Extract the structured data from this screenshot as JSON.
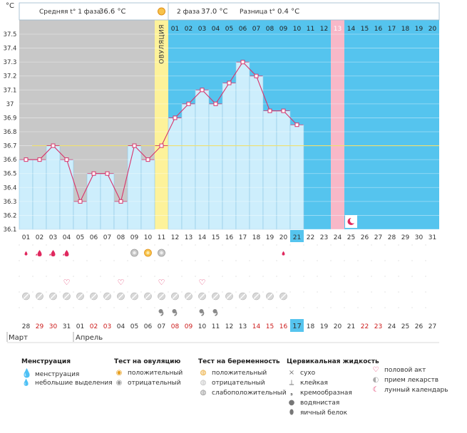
{
  "header": {
    "unit": "°C",
    "phase1_label": "Средняя t° 1 фаза",
    "phase1_value": "36.6 °C",
    "phase2_label": "2 фаза",
    "phase2_value": "37.0 °C",
    "diff_label": "Разница t°",
    "diff_value": "0.4 °C"
  },
  "colors": {
    "phase1_bg": "#c8c8c8",
    "phase2_bg": "#55c4ee",
    "bar_fill": "#cdeefc",
    "line": "#d8336b",
    "ovulation": "#fdf29a",
    "pink": "#f8b8c8",
    "coverline": "#f0e070",
    "highlight": "#55c4ee",
    "red_text": "#cc1a1a"
  },
  "chart_data": {
    "type": "line",
    "title": "",
    "ylabel": "°C",
    "ylim": [
      36.1,
      37.5
    ],
    "yticks": [
      "37.5",
      "37.4",
      "37.3",
      "37.2",
      "37.1",
      "37",
      "36.9",
      "36.8",
      "36.7",
      "36.6",
      "36.5",
      "36.4",
      "36.3",
      "36.2",
      "36.1"
    ],
    "cover_line": 36.7,
    "ovulation_day_index": 10,
    "ovulation_label": "ОВУЛЯЦИЯ",
    "pink_day_index": 23,
    "moon_day_index": 24,
    "highlight_day_index": 20,
    "cycle_days": [
      "01",
      "02",
      "03",
      "04",
      "05",
      "06",
      "07",
      "08",
      "09",
      "10",
      "11",
      "12",
      "13",
      "14",
      "15",
      "16",
      "17",
      "18",
      "19",
      "20",
      "21",
      "22",
      "23",
      "24",
      "25",
      "26",
      "27",
      "28",
      "29",
      "30",
      "31"
    ],
    "top_days": [
      "01",
      "02",
      "03",
      "04",
      "05",
      "06",
      "07",
      "08",
      "09",
      "10",
      "11",
      "12",
      "13",
      "14",
      "15",
      "16",
      "17",
      "18",
      "19",
      "20"
    ],
    "series": [
      {
        "values": [
          36.6,
          36.6,
          36.7,
          36.6,
          36.3,
          36.5,
          36.5,
          36.3,
          36.7,
          36.6,
          36.7,
          36.9,
          37.0,
          37.1,
          37.0,
          37.15,
          37.3,
          37.2,
          36.95,
          36.95,
          36.85
        ]
      }
    ]
  },
  "events": {
    "menstruation_heavy": [
      1,
      2,
      3
    ],
    "menstruation_light": [
      0,
      19
    ],
    "ovulation_test_negative": [
      8,
      10
    ],
    "ovulation_test_positive": [
      9
    ],
    "intercourse": [
      3,
      7,
      10,
      13
    ],
    "medication": [
      0,
      1,
      2,
      3,
      4,
      5,
      6,
      7,
      8,
      9,
      10,
      11,
      12,
      13,
      14,
      15,
      16,
      17,
      18,
      19
    ],
    "creamy_fluid": [
      10,
      11,
      13,
      14
    ]
  },
  "dates": [
    "28",
    "29",
    "30",
    "31",
    "01",
    "02",
    "03",
    "04",
    "05",
    "06",
    "07",
    "08",
    "09",
    "10",
    "11",
    "12",
    "13",
    "14",
    "15",
    "16",
    "17",
    "18",
    "19",
    "20",
    "21",
    "22",
    "23",
    "24",
    "25",
    "26",
    "27"
  ],
  "dates_red": [
    1,
    2,
    5,
    6,
    11,
    12,
    17,
    18,
    19,
    25,
    26
  ],
  "months": {
    "first": "Март",
    "second": "Апрель"
  },
  "legend": {
    "menstruation": {
      "title": "Менструация",
      "items": [
        "менструация",
        "небольшие выделения"
      ]
    },
    "ovulation_test": {
      "title": "Тест на овуляцию",
      "items": [
        "положительный",
        "отрицательный"
      ]
    },
    "pregnancy_test": {
      "title": "Тест на беременность",
      "items": [
        "положительный",
        "отрицательный",
        "слабоположительный"
      ]
    },
    "cervical": {
      "title": "Цервикальная жидкость",
      "items": [
        "сухо",
        "клейкая",
        "кремообразная",
        "водянистая",
        "яичный белок"
      ]
    },
    "other": {
      "items": [
        "половой акт",
        "прием лекарств",
        "лунный календарь"
      ]
    }
  }
}
